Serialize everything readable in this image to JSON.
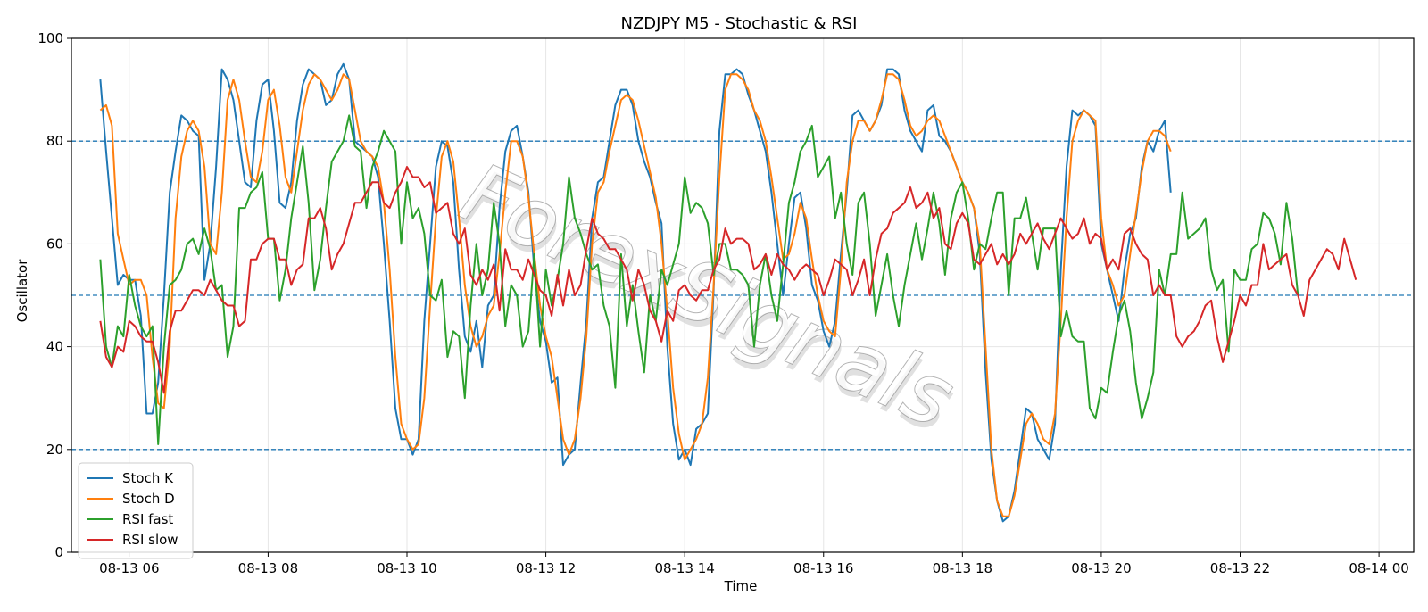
{
  "chart_data": {
    "type": "line",
    "title": "NZDJPY M5 - Stochastic & RSI",
    "xlabel": "Time",
    "ylabel": "Oscillator",
    "ylim": [
      0,
      100
    ],
    "xlim": [
      "08-13 05:10",
      "08-14 00:30"
    ],
    "x_tick_labels": [
      "08-13 06",
      "08-13 08",
      "08-13 10",
      "08-13 12",
      "08-13 14",
      "08-13 16",
      "08-13 18",
      "08-13 20",
      "08-13 22",
      "08-14 00"
    ],
    "y_ticks": [
      0,
      20,
      40,
      60,
      80,
      100
    ],
    "reference_lines": [
      80,
      50,
      20
    ],
    "grid": true,
    "legend_position": "lower-left",
    "watermark": "ForexSignals",
    "x_start": "08-13 05:35",
    "x_step": "5min",
    "series": [
      {
        "name": "Stoch K",
        "color": "#1f77b4",
        "values": [
          92,
          78,
          65,
          52,
          54,
          53,
          53,
          46,
          27,
          27,
          33,
          50,
          70,
          78,
          85,
          84,
          82,
          81,
          53,
          60,
          75,
          94,
          92,
          88,
          80,
          72,
          71,
          84,
          91,
          92,
          82,
          68,
          67,
          72,
          84,
          91,
          94,
          93,
          92,
          87,
          88,
          93,
          95,
          92,
          80,
          79,
          78,
          77,
          73,
          60,
          45,
          28,
          22,
          22,
          19,
          22,
          45,
          60,
          75,
          80,
          79,
          72,
          55,
          42,
          39,
          45,
          36,
          48,
          50,
          67,
          78,
          82,
          83,
          77,
          70,
          55,
          45,
          41,
          33,
          34,
          17,
          19,
          20,
          33,
          45,
          65,
          72,
          73,
          80,
          87,
          90,
          90,
          87,
          80,
          76,
          73,
          68,
          64,
          40,
          25,
          18,
          20,
          17,
          24,
          25,
          27,
          51,
          82,
          93,
          93,
          94,
          93,
          89,
          86,
          82,
          78,
          70,
          60,
          50,
          60,
          69,
          70,
          63,
          52,
          49,
          43,
          40,
          45,
          58,
          70,
          85,
          86,
          84,
          82,
          84,
          87,
          94,
          94,
          93,
          86,
          82,
          80,
          78,
          86,
          87,
          81,
          80,
          78,
          75,
          72,
          70,
          67,
          58,
          35,
          18,
          10,
          6,
          7,
          12,
          20,
          28,
          27,
          22,
          20,
          18,
          25,
          55,
          75,
          86,
          85,
          86,
          85,
          83,
          60,
          55,
          50,
          45,
          55,
          62,
          65,
          75,
          80,
          78,
          82,
          84,
          70
        ]
      },
      {
        "name": "Stoch D",
        "color": "#ff7f0e",
        "values": [
          86,
          87,
          83,
          62,
          57,
          52,
          53,
          53,
          50,
          38,
          29,
          28,
          40,
          65,
          77,
          82,
          84,
          82,
          75,
          60,
          58,
          70,
          88,
          92,
          88,
          80,
          73,
          72,
          78,
          88,
          90,
          83,
          73,
          70,
          78,
          86,
          91,
          93,
          92,
          90,
          88,
          90,
          93,
          92,
          86,
          80,
          78,
          77,
          75,
          68,
          55,
          38,
          25,
          22,
          20,
          21,
          30,
          48,
          65,
          77,
          80,
          76,
          65,
          52,
          44,
          40,
          42,
          46,
          48,
          58,
          70,
          80,
          80,
          77,
          69,
          58,
          48,
          42,
          38,
          30,
          22,
          19,
          22,
          30,
          42,
          60,
          70,
          72,
          78,
          83,
          88,
          89,
          88,
          84,
          79,
          74,
          69,
          60,
          47,
          32,
          23,
          18,
          20,
          22,
          25,
          34,
          52,
          73,
          90,
          93,
          93,
          92,
          90,
          86,
          84,
          80,
          73,
          65,
          57,
          58,
          62,
          68,
          65,
          57,
          50,
          45,
          43,
          42,
          55,
          72,
          80,
          84,
          84,
          82,
          84,
          88,
          93,
          93,
          92,
          88,
          83,
          81,
          82,
          84,
          85,
          84,
          81,
          78,
          75,
          72,
          70,
          67,
          60,
          40,
          20,
          10,
          7,
          7,
          11,
          18,
          25,
          27,
          25,
          22,
          21,
          27,
          45,
          65,
          80,
          84,
          86,
          85,
          84,
          65,
          55,
          52,
          48,
          50,
          58,
          66,
          74,
          80,
          82,
          82,
          81,
          78
        ]
      },
      {
        "name": "RSI fast",
        "color": "#2ca02c",
        "values": [
          57,
          40,
          36,
          44,
          42,
          54,
          48,
          44,
          42,
          44,
          21,
          40,
          52,
          53,
          55,
          60,
          61,
          58,
          63,
          59,
          51,
          52,
          38,
          44,
          67,
          67,
          70,
          71,
          74,
          61,
          61,
          49,
          55,
          65,
          72,
          79,
          68,
          51,
          57,
          67,
          76,
          78,
          80,
          85,
          79,
          78,
          67,
          75,
          78,
          82,
          80,
          78,
          60,
          72,
          65,
          67,
          62,
          50,
          49,
          53,
          38,
          43,
          42,
          30,
          48,
          60,
          50,
          55,
          68,
          60,
          44,
          52,
          50,
          40,
          43,
          58,
          40,
          55,
          48,
          53,
          60,
          73,
          65,
          62,
          58,
          55,
          56,
          48,
          44,
          32,
          58,
          44,
          52,
          43,
          35,
          50,
          45,
          55,
          52,
          56,
          60,
          73,
          66,
          68,
          67,
          64,
          54,
          60,
          60,
          55,
          55,
          54,
          52,
          40,
          52,
          58,
          50,
          45,
          56,
          68,
          72,
          78,
          80,
          83,
          73,
          75,
          77,
          65,
          70,
          60,
          54,
          68,
          70,
          60,
          46,
          52,
          58,
          50,
          44,
          52,
          58,
          64,
          57,
          63,
          70,
          64,
          54,
          65,
          70,
          72,
          65,
          55,
          60,
          59,
          65,
          70,
          70,
          50,
          65,
          65,
          69,
          62,
          55,
          63,
          63,
          63,
          42,
          47,
          42,
          41,
          41,
          28,
          26,
          32,
          31,
          39,
          46,
          49,
          43,
          33,
          26,
          30,
          35,
          55,
          50,
          58,
          58,
          70,
          61,
          62,
          63,
          65,
          55,
          51,
          53,
          39,
          55,
          53,
          53,
          59,
          60,
          66,
          65,
          62,
          56,
          68,
          61,
          50
        ]
      },
      {
        "name": "RSI slow",
        "color": "#d62728",
        "values": [
          45,
          38,
          36,
          40,
          39,
          45,
          44,
          42,
          41,
          41,
          37,
          31,
          43,
          47,
          47,
          49,
          51,
          51,
          50,
          53,
          51,
          49,
          48,
          48,
          44,
          45,
          57,
          57,
          60,
          61,
          61,
          57,
          57,
          52,
          55,
          56,
          65,
          65,
          67,
          63,
          55,
          58,
          60,
          64,
          68,
          68,
          70,
          72,
          72,
          68,
          67,
          70,
          72,
          75,
          73,
          73,
          71,
          72,
          66,
          67,
          68,
          62,
          60,
          63,
          54,
          52,
          55,
          53,
          56,
          47,
          59,
          55,
          55,
          53,
          57,
          54,
          51,
          50,
          46,
          54,
          48,
          55,
          50,
          52,
          59,
          65,
          62,
          61,
          59,
          59,
          57,
          55,
          49,
          55,
          52,
          47,
          45,
          41,
          47,
          45,
          51,
          52,
          50,
          49,
          51,
          51,
          55,
          57,
          63,
          60,
          61,
          61,
          60,
          55,
          56,
          58,
          54,
          58,
          56,
          55,
          53,
          55,
          56,
          55,
          54,
          50,
          53,
          57,
          56,
          55,
          50,
          53,
          57,
          50,
          57,
          62,
          63,
          66,
          67,
          68,
          71,
          67,
          68,
          70,
          65,
          67,
          60,
          59,
          64,
          66,
          64,
          57,
          56,
          58,
          60,
          56,
          58,
          56,
          58,
          62,
          60,
          62,
          64,
          61,
          59,
          62,
          65,
          63,
          61,
          62,
          65,
          60,
          62,
          61,
          55,
          57,
          55,
          62,
          63,
          60,
          58,
          57,
          50,
          52,
          50,
          50,
          42,
          40,
          42,
          43,
          45,
          48,
          49,
          42,
          37,
          41,
          45,
          50,
          48,
          52,
          52,
          60,
          55,
          56,
          57,
          58,
          52,
          50,
          46,
          53,
          55,
          57,
          59,
          58,
          55,
          61,
          57,
          53
        ]
      }
    ]
  }
}
